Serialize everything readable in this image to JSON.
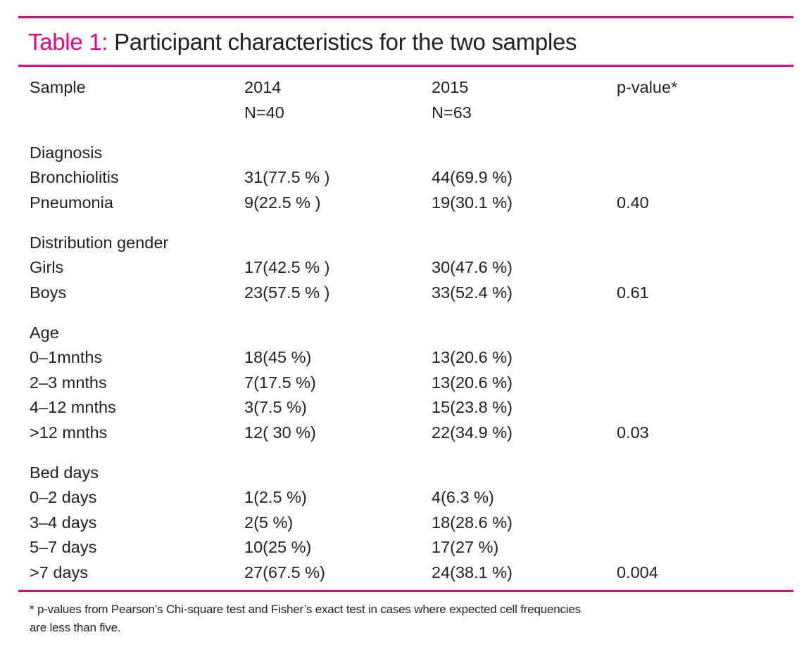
{
  "title": {
    "label": "Table 1:",
    "text": "Participant characteristics for the two samples"
  },
  "accent_color": "#e6007e",
  "header": {
    "col0": "Sample",
    "col1": [
      "2014",
      "N=40"
    ],
    "col2": [
      "2015",
      "N=63"
    ],
    "col3": "p-value*"
  },
  "groups": [
    {
      "heading": "Diagnosis",
      "rows": [
        [
          "Bronchiolitis",
          "31(77.5 % )",
          "44(69.9 %)",
          ""
        ],
        [
          "Pneumonia",
          "9(22.5 % )",
          "19(30.1 %)",
          "0.40"
        ]
      ]
    },
    {
      "heading": "Distribution gender",
      "rows": [
        [
          "Girls",
          "17(42.5 % )",
          "30(47.6 %)",
          ""
        ],
        [
          "Boys",
          "23(57.5 % )",
          "33(52.4 %)",
          "0.61"
        ]
      ]
    },
    {
      "heading": "Age",
      "rows": [
        [
          "0–1mnths",
          "18(45 %)",
          "13(20.6 %)",
          ""
        ],
        [
          "2–3 mnths",
          "7(17.5 %)",
          "13(20.6 %)",
          ""
        ],
        [
          "4–12 mnths",
          "3(7.5 %)",
          "15(23.8 %)",
          ""
        ],
        [
          ">12 mnths",
          "12( 30 %)",
          "22(34.9 %)",
          "0.03"
        ]
      ]
    },
    {
      "heading": "Bed days",
      "rows": [
        [
          "0–2 days",
          "1(2.5 %)",
          "4(6.3 %)",
          ""
        ],
        [
          "3–4 days",
          "2(5 %)",
          "18(28.6 %)",
          ""
        ],
        [
          "5–7 days",
          "10(25 %)",
          "17(27 %)",
          ""
        ],
        [
          ">7 days",
          "27(67.5 %)",
          "24(38.1 %)",
          "0.004"
        ]
      ]
    }
  ],
  "footnote": [
    "* p-values from Pearson’s Chi-square test and Fisher’s exact test in cases where expected cell frequencies",
    "are  less than five."
  ]
}
